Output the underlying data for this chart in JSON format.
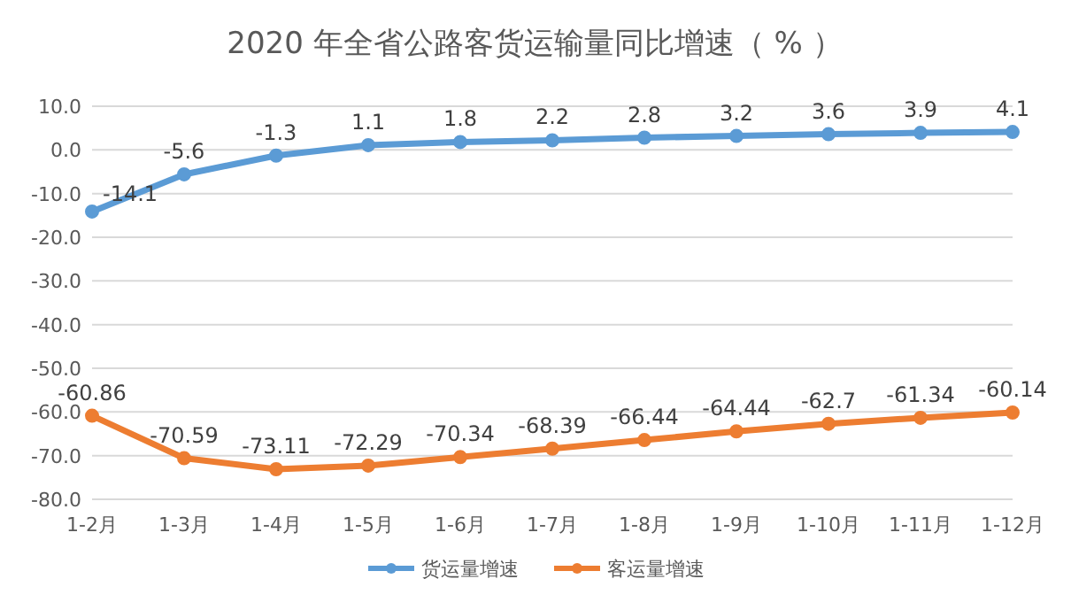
{
  "chart_data": {
    "type": "line",
    "title": "2020 年全省公路客货运输量同比增速（ % ）",
    "categories": [
      "1-2月",
      "1-3月",
      "1-4月",
      "1-5月",
      "1-6月",
      "1-7月",
      "1-8月",
      "1-9月",
      "1-10月",
      "1-11月",
      "1-12月"
    ],
    "series": [
      {
        "name": "货运量增速",
        "color": "#5b9bd5",
        "values": [
          -14.1,
          -5.6,
          -1.3,
          1.1,
          1.8,
          2.2,
          2.8,
          3.2,
          3.6,
          3.9,
          4.1
        ]
      },
      {
        "name": "客运量增速",
        "color": "#ed7d31",
        "values": [
          -60.86,
          -70.59,
          -73.11,
          -72.29,
          -70.34,
          -68.39,
          -66.44,
          -64.44,
          -62.7,
          -61.34,
          -60.14
        ]
      }
    ],
    "ylim": [
      -80,
      10
    ],
    "yticks": [
      {
        "value": 10,
        "label": "10.0"
      },
      {
        "value": 0,
        "label": "0.0"
      },
      {
        "value": -10,
        "label": "-10.0"
      },
      {
        "value": -20,
        "label": "-20.0"
      },
      {
        "value": -30,
        "label": "-30.0"
      },
      {
        "value": -40,
        "label": "-40.0"
      },
      {
        "value": -50,
        "label": "-50.0"
      },
      {
        "value": -60,
        "label": "-60.0"
      },
      {
        "value": -70,
        "label": "-70.0"
      },
      {
        "value": -80,
        "label": "-80.0"
      }
    ],
    "grid": "y",
    "legend": "bottom",
    "marker": "circle",
    "line_style": "solid",
    "data_labels": true
  }
}
